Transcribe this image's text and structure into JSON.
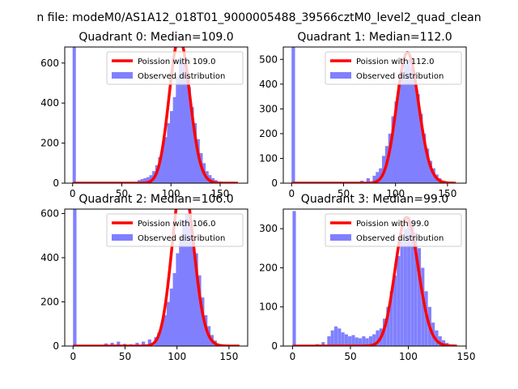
{
  "figure": {
    "suptitle": "n file: modeM0/AS1A12_018T01_9000005488_39566cztM0_level2_quad_clean"
  },
  "colors": {
    "hist": "#8080ff",
    "poisson": "#ff0000",
    "axis": "#000000"
  },
  "chart_data": [
    {
      "type": "bar",
      "title": "Quadrant 0: Median=109.0",
      "xlim": [
        -8,
        178
      ],
      "ylim": [
        0,
        680
      ],
      "xticks": [
        0,
        50,
        100,
        150
      ],
      "yticks": [
        0,
        200,
        400,
        600
      ],
      "legend": {
        "placement": "top-right",
        "line_label": "Poission with 109.0",
        "bar_label": "Observed distribution"
      },
      "hist": {
        "bin_width": 3.3,
        "bins": [
          [
            0,
            680
          ],
          [
            66,
            15
          ],
          [
            69,
            20
          ],
          [
            72,
            25
          ],
          [
            75,
            30
          ],
          [
            78,
            40
          ],
          [
            81,
            60
          ],
          [
            84,
            90
          ],
          [
            87,
            130
          ],
          [
            90,
            180
          ],
          [
            93,
            230
          ],
          [
            96,
            300
          ],
          [
            99,
            360
          ],
          [
            102,
            430
          ],
          [
            105,
            530
          ],
          [
            108,
            620
          ],
          [
            111,
            600
          ],
          [
            114,
            560
          ],
          [
            117,
            480
          ],
          [
            120,
            380
          ],
          [
            123,
            300
          ],
          [
            126,
            220
          ],
          [
            129,
            150
          ],
          [
            132,
            100
          ],
          [
            135,
            60
          ],
          [
            138,
            40
          ],
          [
            141,
            25
          ],
          [
            144,
            15
          ]
        ]
      },
      "poisson": {
        "lambda": 109,
        "scale": 19000,
        "x_range": [
          0,
          168
        ]
      }
    },
    {
      "type": "bar",
      "title": "Quadrant 1: Median=112.0",
      "xlim": [
        -8,
        168
      ],
      "ylim": [
        0,
        550
      ],
      "xticks": [
        0,
        50,
        100,
        150
      ],
      "yticks": [
        0,
        100,
        200,
        300,
        400,
        500
      ],
      "legend": {
        "placement": "top-right",
        "line_label": "Poission with 112.0",
        "bar_label": "Observed distribution"
      },
      "hist": {
        "bin_width": 3.3,
        "bins": [
          [
            0,
            550
          ],
          [
            60,
            5
          ],
          [
            66,
            10
          ],
          [
            72,
            20
          ],
          [
            78,
            30
          ],
          [
            81,
            45
          ],
          [
            84,
            60
          ],
          [
            87,
            110
          ],
          [
            90,
            150
          ],
          [
            93,
            200
          ],
          [
            96,
            270
          ],
          [
            99,
            330
          ],
          [
            102,
            400
          ],
          [
            105,
            440
          ],
          [
            108,
            480
          ],
          [
            111,
            500
          ],
          [
            114,
            470
          ],
          [
            117,
            420
          ],
          [
            120,
            360
          ],
          [
            123,
            280
          ],
          [
            126,
            200
          ],
          [
            129,
            140
          ],
          [
            132,
            90
          ],
          [
            135,
            60
          ],
          [
            138,
            35
          ],
          [
            141,
            20
          ]
        ]
      },
      "poisson": {
        "lambda": 112,
        "scale": 14000,
        "x_range": [
          0,
          158
        ]
      }
    },
    {
      "type": "bar",
      "title": "Quadrant 2: Median=106.0",
      "xlim": [
        -8,
        168
      ],
      "ylim": [
        0,
        620
      ],
      "xticks": [
        0,
        50,
        100,
        150
      ],
      "yticks": [
        0,
        200,
        400,
        600
      ],
      "legend": {
        "placement": "top-right",
        "line_label": "Poission with 106.0",
        "bar_label": "Observed distribution"
      },
      "hist": {
        "bin_width": 3.3,
        "bins": [
          [
            0,
            620
          ],
          [
            30,
            12
          ],
          [
            36,
            15
          ],
          [
            42,
            20
          ],
          [
            48,
            10
          ],
          [
            54,
            8
          ],
          [
            60,
            15
          ],
          [
            66,
            20
          ],
          [
            72,
            30
          ],
          [
            78,
            40
          ],
          [
            81,
            60
          ],
          [
            84,
            100
          ],
          [
            87,
            140
          ],
          [
            90,
            200
          ],
          [
            93,
            260
          ],
          [
            96,
            330
          ],
          [
            99,
            420
          ],
          [
            102,
            500
          ],
          [
            105,
            570
          ],
          [
            108,
            600
          ],
          [
            111,
            580
          ],
          [
            114,
            500
          ],
          [
            117,
            420
          ],
          [
            120,
            320
          ],
          [
            123,
            220
          ],
          [
            126,
            140
          ],
          [
            129,
            90
          ],
          [
            132,
            50
          ],
          [
            135,
            25
          ]
        ]
      },
      "poisson": {
        "lambda": 106,
        "scale": 19500,
        "x_range": [
          0,
          160
        ]
      }
    },
    {
      "type": "bar",
      "title": "Quadrant 3: Median=99.0",
      "xlim": [
        -8,
        150
      ],
      "ylim": [
        0,
        350
      ],
      "xticks": [
        0,
        50,
        100,
        150
      ],
      "yticks": [
        0,
        100,
        200,
        300
      ],
      "legend": {
        "placement": "top-right",
        "line_label": "Poission with 99.0",
        "bar_label": "Observed distribution"
      },
      "hist": {
        "bin_width": 2.9,
        "bins": [
          [
            0,
            345
          ],
          [
            20,
            5
          ],
          [
            25,
            10
          ],
          [
            30,
            25
          ],
          [
            33,
            40
          ],
          [
            36,
            50
          ],
          [
            39,
            45
          ],
          [
            42,
            35
          ],
          [
            45,
            30
          ],
          [
            48,
            25
          ],
          [
            51,
            28
          ],
          [
            54,
            22
          ],
          [
            57,
            20
          ],
          [
            60,
            25
          ],
          [
            63,
            20
          ],
          [
            66,
            25
          ],
          [
            69,
            30
          ],
          [
            72,
            40
          ],
          [
            75,
            45
          ],
          [
            78,
            70
          ],
          [
            81,
            100
          ],
          [
            84,
            140
          ],
          [
            87,
            180
          ],
          [
            90,
            230
          ],
          [
            93,
            270
          ],
          [
            96,
            300
          ],
          [
            99,
            330
          ],
          [
            102,
            320
          ],
          [
            105,
            290
          ],
          [
            108,
            250
          ],
          [
            111,
            200
          ],
          [
            114,
            140
          ],
          [
            117,
            100
          ],
          [
            120,
            60
          ],
          [
            123,
            40
          ],
          [
            126,
            25
          ],
          [
            129,
            15
          ],
          [
            132,
            8
          ]
        ]
      },
      "poisson": {
        "lambda": 99,
        "scale": 8200,
        "x_range": [
          0,
          142
        ]
      }
    }
  ]
}
